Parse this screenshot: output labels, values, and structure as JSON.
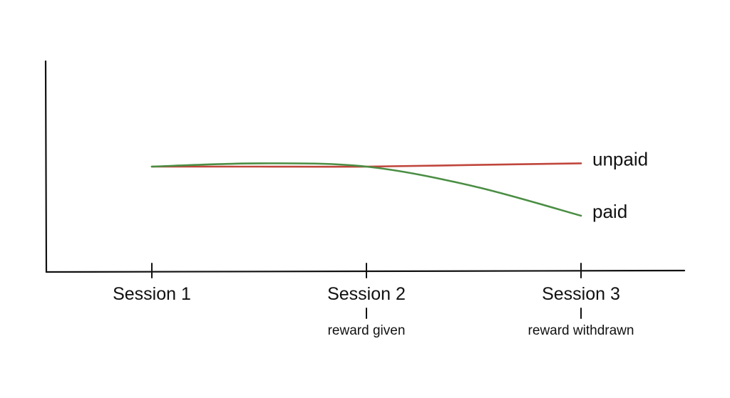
{
  "chart_data": {
    "type": "line",
    "title": "",
    "xlabel": "",
    "ylabel": "",
    "x": [
      1,
      1.5,
      2,
      2.5,
      3
    ],
    "categories": [
      "Session 1",
      "Session 2",
      "Session 3"
    ],
    "annotations": [
      {
        "category": "Session 2",
        "text": "reward given"
      },
      {
        "category": "Session 3",
        "text": "reward withdrawn"
      }
    ],
    "series": [
      {
        "name": "unpaid",
        "color": "#c0463c",
        "values": [
          0.5,
          0.5,
          0.5,
          0.505,
          0.51
        ]
      },
      {
        "name": "paid",
        "color": "#4a8e43",
        "values": [
          0.5,
          0.51,
          0.5,
          0.44,
          0.35
        ]
      }
    ],
    "grid": false,
    "legend": "labels at line ends"
  }
}
